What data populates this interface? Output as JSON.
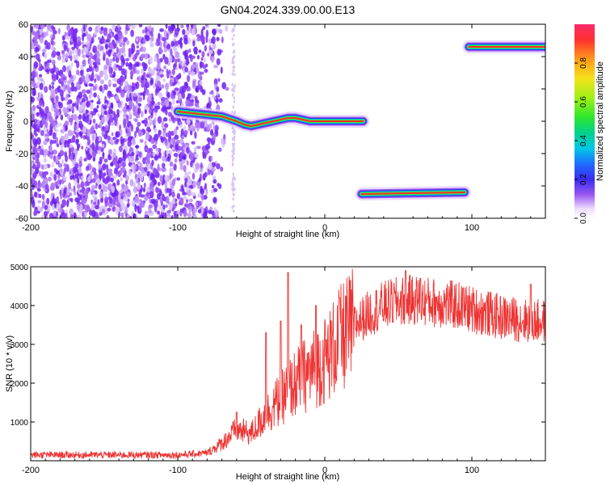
{
  "figure": {
    "title": "GN04.2024.339.00.00.E13"
  },
  "chart_data": [
    {
      "type": "heatmap",
      "xlabel": "Height of straight line (km)",
      "ylabel": "Frequency (Hz)",
      "xlim": [
        -200,
        150
      ],
      "ylim": [
        -60,
        60
      ],
      "x_ticks": [
        -200,
        -100,
        0,
        100
      ],
      "y_ticks": [
        -60,
        -40,
        -20,
        0,
        20,
        40,
        60
      ],
      "colorbar": {
        "label": "Normalized spectral amplitude",
        "range": [
          0,
          1
        ],
        "ticks": [
          0.0,
          0.2,
          0.4,
          0.6,
          0.8
        ],
        "colormap": "rainbow"
      },
      "tracks": [
        {
          "x": [
            -100,
            -90,
            -80,
            -70,
            -60,
            -55,
            -50,
            -45,
            -40,
            -35,
            -30,
            -25,
            -20,
            -15,
            -10,
            0,
            10,
            26
          ],
          "y": [
            6,
            5,
            4,
            3,
            0,
            -2,
            -3,
            -2,
            -1,
            0,
            1,
            2,
            2,
            1,
            0,
            0,
            0,
            0
          ]
        },
        {
          "x": [
            25,
            95
          ],
          "y": [
            -45,
            -44
          ]
        },
        {
          "x": [
            98,
            150
          ],
          "y": [
            46,
            46
          ]
        }
      ],
      "noise_region": [
        -200,
        -75
      ]
    },
    {
      "type": "line",
      "xlabel": "Height of straight line (km)",
      "ylabel": "SNR (10 * v/v)",
      "xlim": [
        -200,
        150
      ],
      "ylim": [
        0,
        5000
      ],
      "x_ticks": [
        -200,
        -100,
        0,
        100
      ],
      "y_ticks": [
        1000,
        2000,
        3000,
        4000,
        5000
      ],
      "line_color": "#ee3333",
      "envelope": {
        "x": [
          -200,
          -100,
          -80,
          -70,
          -60,
          -50,
          -40,
          -30,
          -20,
          -10,
          0,
          10,
          20,
          30,
          40,
          50,
          60,
          70,
          80,
          90,
          100,
          110,
          120,
          130,
          140,
          150
        ],
        "y": [
          150,
          150,
          200,
          450,
          800,
          700,
          1200,
          1600,
          2000,
          2300,
          2600,
          3100,
          3500,
          3800,
          4000,
          4100,
          4150,
          4100,
          4050,
          4000,
          3900,
          3800,
          3700,
          3650,
          3600,
          3600
        ]
      },
      "spikes": [
        {
          "x": -60,
          "y": 1250
        },
        {
          "x": -40,
          "y": 3300
        },
        {
          "x": -30,
          "y": 3600
        },
        {
          "x": -25,
          "y": 4850
        },
        {
          "x": -16,
          "y": 3500
        },
        {
          "x": -6,
          "y": 4000
        },
        {
          "x": 10,
          "y": 4200
        },
        {
          "x": 55,
          "y": 4900
        },
        {
          "x": 65,
          "y": 4700
        },
        {
          "x": 140,
          "y": 4550
        }
      ]
    }
  ]
}
